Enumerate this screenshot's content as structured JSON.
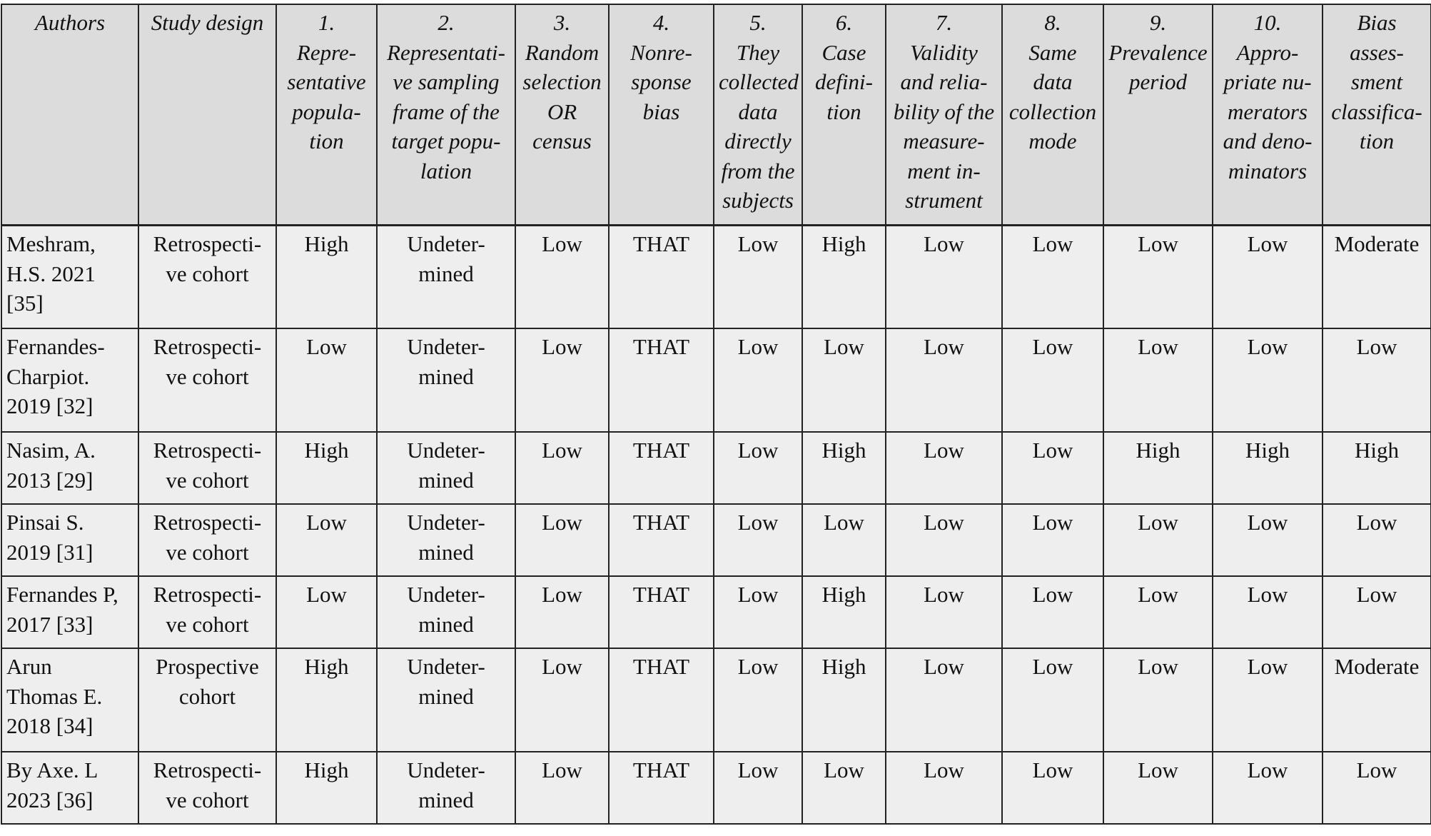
{
  "headers": [
    "Authors",
    "Study design",
    "1.\nRepre-\nsentative\npopula-\ntion",
    "2.\nRepresentati-\nve sampling\nframe of the\ntarget popu-\nlation",
    "3.\nRandom\nselection\nOR\ncensus",
    "4.\nNonre-\nsponse\nbias",
    "5.\nThey\ncollected\ndata\ndirectly\nfrom the\nsubjects",
    "6.\nCase\ndefini-\ntion",
    "7.\nValidity\nand relia-\nbility of the\nmeasure-\nment in-\nstrument",
    "8.\nSame\ndata\ncollection\nmode",
    "9.\nPrevalence\nperiod",
    "10.\nAppro-\npriate nu-\nmerators\nand deno-\nminators",
    "Bias\nasses-\nsment\nclassifica-\ntion"
  ],
  "rows": [
    [
      "Meshram,\nH.S. 2021\n[35]",
      "Retrospecti-\nve cohort",
      "High",
      "Undeter-\nmined",
      "Low",
      "THAT",
      "Low",
      "High",
      "Low",
      "Low",
      "Low",
      "Low",
      "Moderate"
    ],
    [
      "Fernandes-\nCharpiot.\n2019 [32]",
      "Retrospecti-\nve cohort",
      "Low",
      "Undeter-\nmined",
      "Low",
      "THAT",
      "Low",
      "Low",
      "Low",
      "Low",
      "Low",
      "Low",
      "Low"
    ],
    [
      "Nasim, A.\n2013 [29]",
      "Retrospecti-\nve cohort",
      "High",
      "Undeter-\nmined",
      "Low",
      "THAT",
      "Low",
      "High",
      "Low",
      "Low",
      "High",
      "High",
      "High"
    ],
    [
      "Pinsai S.\n2019 [31]",
      "Retrospecti-\nve cohort",
      "Low",
      "Undeter-\nmined",
      "Low",
      "THAT",
      "Low",
      "Low",
      "Low",
      "Low",
      "Low",
      "Low",
      "Low"
    ],
    [
      "Fernandes P,\n2017 [33]",
      "Retrospecti-\nve cohort",
      "Low",
      "Undeter-\nmined",
      "Low",
      "THAT",
      "Low",
      "High",
      "Low",
      "Low",
      "Low",
      "Low",
      "Low"
    ],
    [
      "Arun\nThomas E.\n2018 [34]",
      "Prospective\ncohort",
      "High",
      "Undeter-\nmined",
      "Low",
      "THAT",
      "Low",
      "High",
      "Low",
      "Low",
      "Low",
      "Low",
      "Moderate"
    ],
    [
      "By Axe. L\n2023 [36]",
      "Retrospecti-\nve cohort",
      "High",
      "Undeter-\nmined",
      "Low",
      "THAT",
      "Low",
      "Low",
      "Low",
      "Low",
      "Low",
      "Low",
      "Low"
    ]
  ]
}
